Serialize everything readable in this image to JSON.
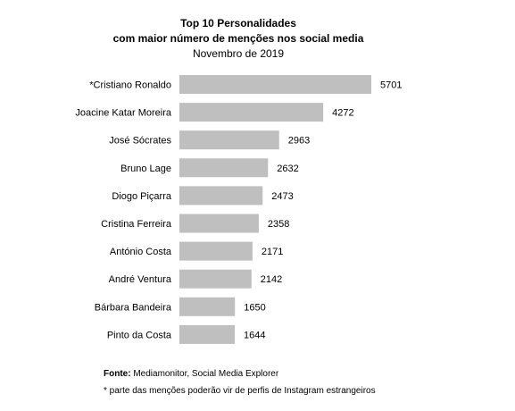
{
  "chart_data": {
    "type": "bar",
    "orientation": "horizontal",
    "title_lines": [
      "Top 10 Personalidades",
      "com maior número de menções nos social media"
    ],
    "subtitle": "Novembro de 2019",
    "categories": [
      "*Cristiano Ronaldo",
      "Joacine Katar Moreira",
      "José Sócrates",
      "Bruno Lage",
      "Diogo Piçarra",
      "Cristina Ferreira",
      "António Costa",
      "André Ventura",
      "Bárbara Bandeira",
      "Pinto da Costa"
    ],
    "values": [
      5701,
      4272,
      2963,
      2632,
      2473,
      2358,
      2171,
      2142,
      1650,
      1644
    ],
    "bar_color": "#bfbfbf",
    "grid": false,
    "data_labels": true
  },
  "source": {
    "label": "Fonte:",
    "text": "Mediamonitor, Social Media Explorer"
  },
  "footnote": "*  parte das menções poderão vir de perfis de Instagram estrangeiros"
}
